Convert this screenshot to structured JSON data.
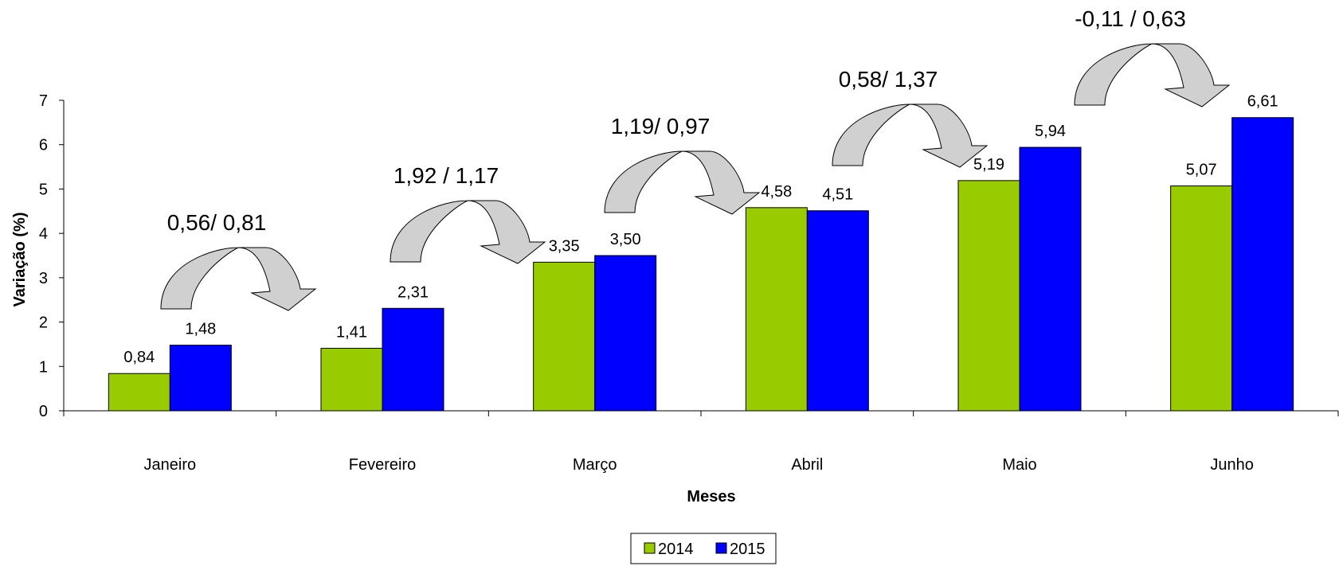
{
  "chart_data": {
    "type": "bar",
    "title": "",
    "xlabel": "Meses",
    "ylabel": "Variação (%)",
    "ylim": [
      0,
      7
    ],
    "yticks": [
      "0",
      "1",
      "2",
      "3",
      "4",
      "5",
      "6",
      "7"
    ],
    "grid": false,
    "legend_position": "bottom-center",
    "categories": [
      "Janeiro",
      "Fevereiro",
      "Março",
      "Abril",
      "Maio",
      "Junho"
    ],
    "series": [
      {
        "name": "2014",
        "color": "#99cc00",
        "values": [
          0.84,
          1.41,
          3.35,
          4.58,
          5.19,
          5.07
        ],
        "labels": [
          "0,84",
          "1,41",
          "3,35",
          "4,58",
          "5,19",
          "5,07"
        ]
      },
      {
        "name": "2015",
        "color": "#0000ff",
        "values": [
          1.48,
          2.31,
          3.5,
          4.51,
          5.94,
          6.61
        ],
        "labels": [
          "1,48",
          "2,31",
          "3,50",
          "4,51",
          "5,94",
          "6,61"
        ]
      }
    ],
    "annotations": [
      {
        "text": "0,56/ 0,81",
        "category": "Janeiro"
      },
      {
        "text": "1,92 / 1,17",
        "category": "Fevereiro"
      },
      {
        "text": "1,19/  0,97",
        "category": "Março"
      },
      {
        "text": "0,58/ 1,37",
        "category": "Abril"
      },
      {
        "text": "-0,11 / 0,63",
        "category": "Maio"
      }
    ],
    "annotation_arrow_fill": "#d0d0d0"
  }
}
